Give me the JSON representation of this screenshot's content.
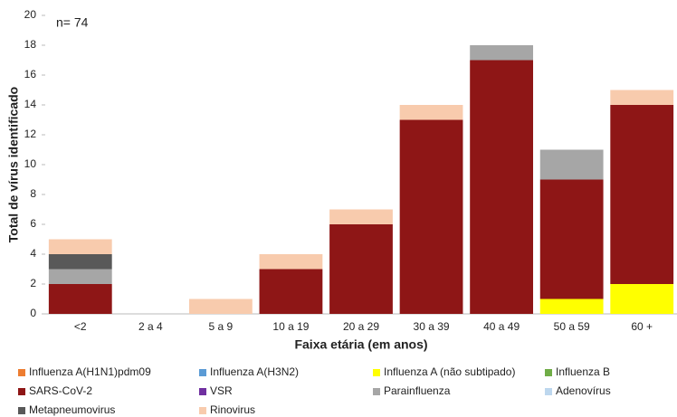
{
  "chart_data": {
    "type": "stacked_bar",
    "annotation": "n= 74",
    "x_label": "Faixa etária (em anos)",
    "y_label": "Total de vírus identificado",
    "categories": [
      "<2",
      "2 a 4",
      "5 a 9",
      "10 a 19",
      "20 a 29",
      "30 a 39",
      "40 a 49",
      "50 a 59",
      "60 +"
    ],
    "ylim": [
      0,
      20
    ],
    "yticks": [
      0,
      2,
      4,
      6,
      8,
      10,
      12,
      14,
      16,
      18,
      20
    ],
    "grid": false,
    "series": [
      {
        "name": "Influenza A(H1N1)pdm09",
        "color": "#ED7D31",
        "values": [
          0,
          0,
          0,
          0,
          0,
          0,
          0,
          0,
          0
        ]
      },
      {
        "name": "Influenza A(H3N2)",
        "color": "#5B9BD5",
        "values": [
          0,
          0,
          0,
          0,
          0,
          0,
          0,
          0,
          0
        ]
      },
      {
        "name": "Influenza A (não subtipado)",
        "color": "#FFFF00",
        "values": [
          0,
          0,
          0,
          0,
          0,
          0,
          0,
          1,
          2
        ]
      },
      {
        "name": "Influenza B",
        "color": "#70AD47",
        "values": [
          0,
          0,
          0,
          0,
          0,
          0,
          0,
          0,
          0
        ]
      },
      {
        "name": "SARS-CoV-2",
        "color": "#8E1616",
        "values": [
          2,
          0,
          0,
          3,
          6,
          13,
          17,
          8,
          12
        ]
      },
      {
        "name": "VSR",
        "color": "#7030A0",
        "values": [
          0,
          0,
          0,
          0,
          0,
          0,
          0,
          0,
          0
        ]
      },
      {
        "name": "Parainfluenza",
        "color": "#A6A6A6",
        "values": [
          1,
          0,
          0,
          0,
          0,
          0,
          1,
          2,
          0
        ]
      },
      {
        "name": "Adenovírus",
        "color": "#BDD7EE",
        "values": [
          0,
          0,
          0,
          0,
          0,
          0,
          0,
          0,
          0
        ]
      },
      {
        "name": "Metapneumovirus",
        "color": "#595959",
        "values": [
          1,
          0,
          0,
          0,
          0,
          0,
          0,
          0,
          0
        ]
      },
      {
        "name": "Rinovirus",
        "color": "#F8CBAD",
        "values": [
          1,
          0,
          1,
          1,
          1,
          1,
          0,
          0,
          1
        ]
      }
    ]
  }
}
